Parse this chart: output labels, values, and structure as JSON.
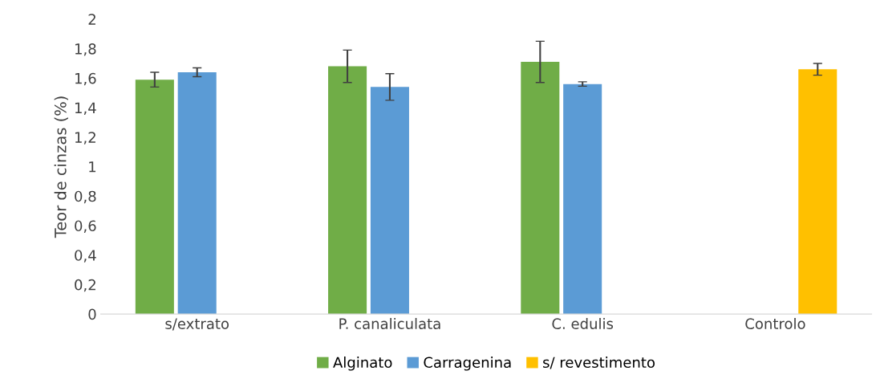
{
  "chart_data": {
    "type": "bar",
    "ylabel": "Teor de cinzas (%)",
    "categories": [
      "s/extrato",
      "P. canaliculata",
      "C. edulis",
      "Controlo"
    ],
    "series": [
      {
        "name": "Alginato",
        "color": "#70ad47",
        "values": [
          1.59,
          1.68,
          1.71,
          null
        ],
        "errors": [
          0.05,
          0.11,
          0.14,
          null
        ]
      },
      {
        "name": "Carragenina",
        "color": "#5b9bd5",
        "values": [
          1.64,
          1.54,
          1.56,
          null
        ],
        "errors": [
          0.03,
          0.09,
          0.015,
          null
        ]
      },
      {
        "name": "s/ revestimento",
        "color": "#ffc000",
        "values": [
          null,
          null,
          null,
          1.66
        ],
        "errors": [
          null,
          null,
          null,
          0.04
        ]
      }
    ],
    "ylim": [
      0,
      2
    ],
    "yticks": [
      0,
      {
        "value": 0.2,
        "label": "0,2"
      },
      {
        "value": 0.4,
        "label": "0,4"
      },
      {
        "value": 0.6,
        "label": "0,6"
      },
      {
        "value": 0.8,
        "label": "0,8"
      },
      1,
      {
        "value": 1.2,
        "label": "1,2"
      },
      {
        "value": 1.4,
        "label": "1,4"
      },
      {
        "value": 1.6,
        "label": "1,6"
      },
      {
        "value": 1.8,
        "label": "1,8"
      },
      2
    ],
    "grid": false,
    "legend": "bottom"
  }
}
